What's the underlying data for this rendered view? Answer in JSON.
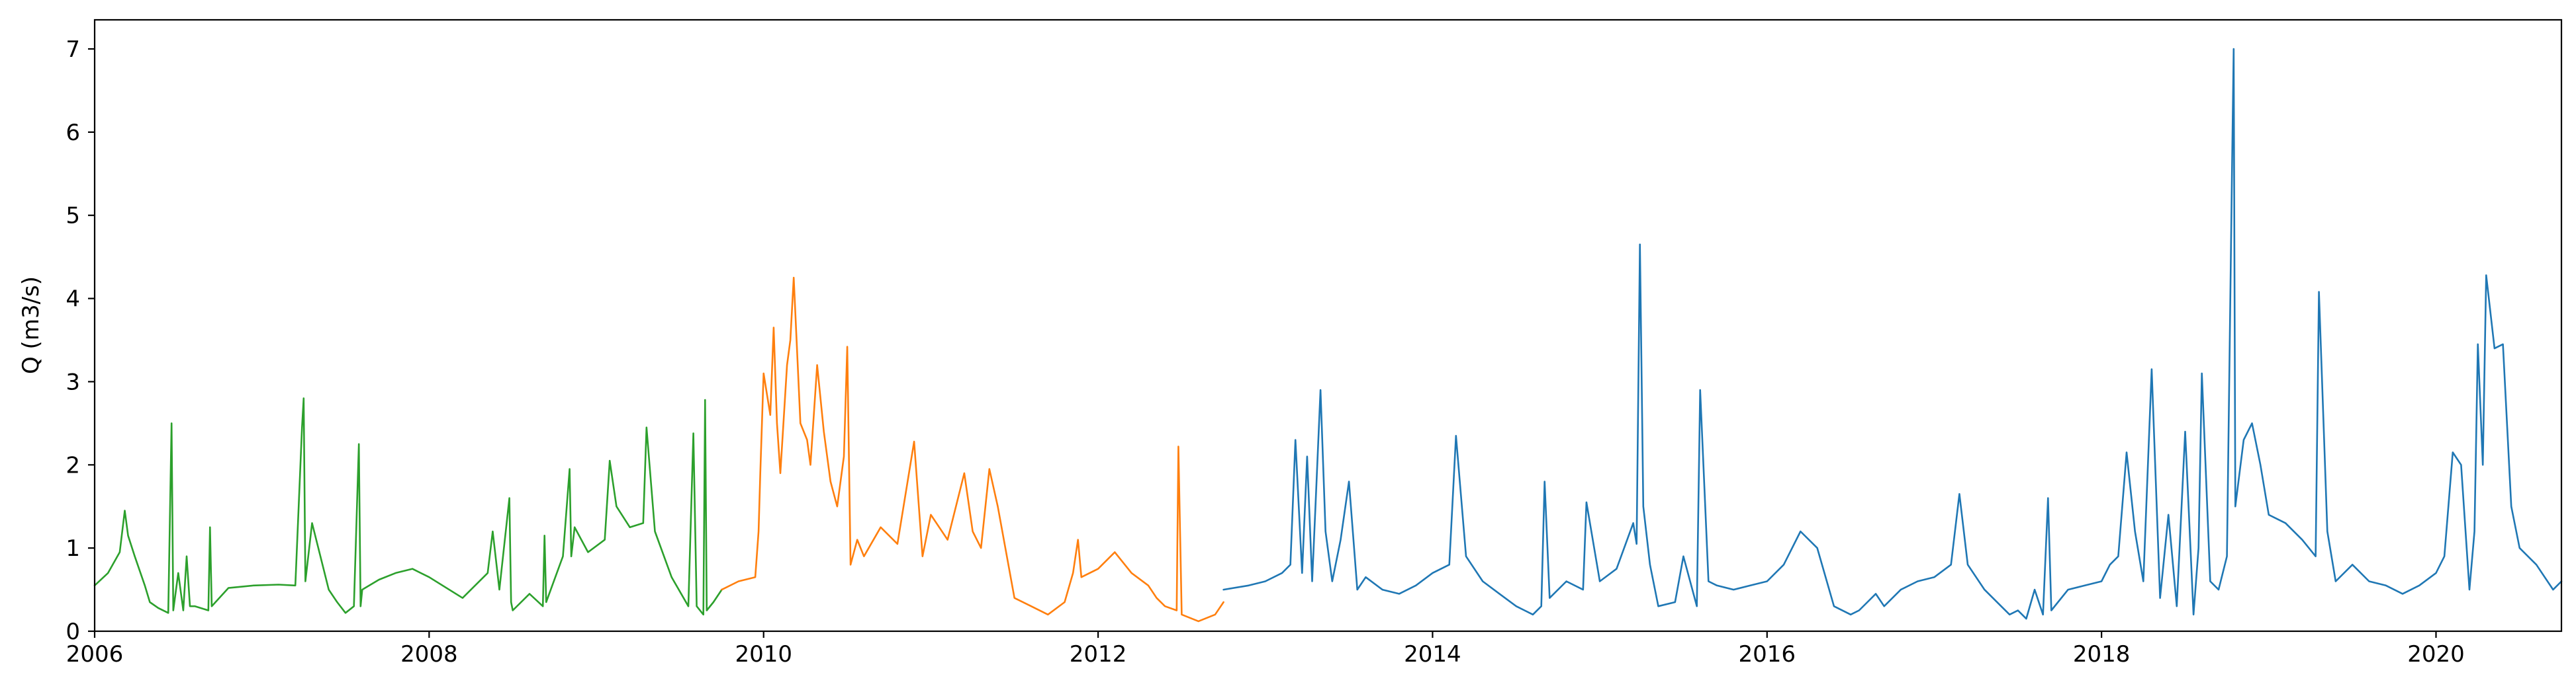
{
  "chart_data": {
    "type": "line",
    "title": "",
    "xlabel": "",
    "ylabel": "Q (m3/s)",
    "xlim": [
      2006.0,
      2020.75
    ],
    "ylim": [
      0,
      7.35
    ],
    "xticks": [
      2006,
      2008,
      2010,
      2012,
      2014,
      2016,
      2018,
      2020
    ],
    "xtick_labels": [
      "2006",
      "2008",
      "2010",
      "2012",
      "2014",
      "2016",
      "2018",
      "2020"
    ],
    "yticks": [
      0,
      1,
      2,
      3,
      4,
      5,
      6,
      7
    ],
    "ytick_labels": [
      "0",
      "1",
      "2",
      "3",
      "4",
      "5",
      "6",
      "7"
    ],
    "grid": false,
    "legend": "none",
    "series": [
      {
        "color": "#2ca02c",
        "x": [
          2006.0,
          2006.08,
          2006.15,
          2006.18,
          2006.2,
          2006.24,
          2006.3,
          2006.33,
          2006.38,
          2006.44,
          2006.46,
          2006.47,
          2006.5,
          2006.53,
          2006.55,
          2006.57,
          2006.6,
          2006.68,
          2006.69,
          2006.7,
          2006.8,
          2006.95,
          2007.1,
          2007.2,
          2007.24,
          2007.25,
          2007.26,
          2007.3,
          2007.35,
          2007.4,
          2007.45,
          2007.5,
          2007.55,
          2007.58,
          2007.59,
          2007.6,
          2007.7,
          2007.8,
          2007.9,
          2008.0,
          2008.2,
          2008.35,
          2008.38,
          2008.42,
          2008.48,
          2008.49,
          2008.5,
          2008.6,
          2008.68,
          2008.69,
          2008.7,
          2008.8,
          2008.84,
          2008.85,
          2008.87,
          2008.95,
          2009.05,
          2009.08,
          2009.12,
          2009.2,
          2009.28,
          2009.3,
          2009.35,
          2009.45,
          2009.55,
          2009.58,
          2009.6,
          2009.64,
          2009.65,
          2009.66,
          2009.7,
          2009.75
        ],
        "values": [
          0.55,
          0.7,
          0.95,
          1.45,
          1.15,
          0.9,
          0.55,
          0.35,
          0.28,
          0.22,
          2.5,
          0.25,
          0.7,
          0.25,
          0.9,
          0.3,
          0.3,
          0.25,
          1.25,
          0.3,
          0.52,
          0.55,
          0.56,
          0.55,
          2.45,
          2.8,
          0.6,
          1.3,
          0.9,
          0.5,
          0.35,
          0.22,
          0.3,
          2.25,
          0.3,
          0.5,
          0.62,
          0.7,
          0.75,
          0.65,
          0.4,
          0.7,
          1.2,
          0.5,
          1.6,
          0.35,
          0.25,
          0.45,
          0.3,
          1.15,
          0.35,
          0.9,
          1.95,
          0.9,
          1.25,
          0.95,
          1.1,
          2.05,
          1.5,
          1.25,
          1.3,
          2.45,
          1.2,
          0.65,
          0.3,
          2.38,
          0.3,
          0.2,
          2.78,
          0.25,
          0.35,
          0.5
        ]
      },
      {
        "color": "#ff7f0e",
        "x": [
          2009.75,
          2009.85,
          2009.95,
          2009.97,
          2009.98,
          2010.0,
          2010.04,
          2010.06,
          2010.08,
          2010.1,
          2010.14,
          2010.16,
          2010.18,
          2010.22,
          2010.26,
          2010.28,
          2010.32,
          2010.36,
          2010.4,
          2010.44,
          2010.48,
          2010.5,
          2010.52,
          2010.56,
          2010.6,
          2010.7,
          2010.8,
          2010.9,
          2010.95,
          2011.0,
          2011.1,
          2011.2,
          2011.25,
          2011.3,
          2011.35,
          2011.4,
          2011.45,
          2011.5,
          2011.6,
          2011.7,
          2011.8,
          2011.85,
          2011.88,
          2011.9,
          2012.0,
          2012.1,
          2012.2,
          2012.3,
          2012.35,
          2012.4,
          2012.47,
          2012.48,
          2012.5,
          2012.6,
          2012.7,
          2012.75
        ],
        "values": [
          0.5,
          0.6,
          0.65,
          1.2,
          1.9,
          3.1,
          2.6,
          3.65,
          2.5,
          1.9,
          3.2,
          3.5,
          4.25,
          2.5,
          2.3,
          2.0,
          3.2,
          2.4,
          1.8,
          1.5,
          2.1,
          3.42,
          0.8,
          1.1,
          0.9,
          1.25,
          1.05,
          2.28,
          0.9,
          1.4,
          1.1,
          1.9,
          1.2,
          1.0,
          1.95,
          1.5,
          0.95,
          0.4,
          0.3,
          0.2,
          0.35,
          0.7,
          1.1,
          0.65,
          0.75,
          0.95,
          0.7,
          0.55,
          0.4,
          0.3,
          0.25,
          2.22,
          0.2,
          0.12,
          0.2,
          0.35
        ]
      },
      {
        "color": "#1f77b4",
        "x": [
          2012.75,
          2012.9,
          2013.0,
          2013.1,
          2013.15,
          2013.18,
          2013.22,
          2013.25,
          2013.28,
          2013.3,
          2013.33,
          2013.36,
          2013.4,
          2013.45,
          2013.5,
          2013.55,
          2013.6,
          2013.7,
          2013.8,
          2013.9,
          2014.0,
          2014.1,
          2014.14,
          2014.2,
          2014.3,
          2014.4,
          2014.5,
          2014.55,
          2014.6,
          2014.65,
          2014.67,
          2014.7,
          2014.8,
          2014.9,
          2014.92,
          2015.0,
          2015.1,
          2015.2,
          2015.22,
          2015.24,
          2015.26,
          2015.3,
          2015.35,
          2015.45,
          2015.5,
          2015.58,
          2015.6,
          2015.65,
          2015.7,
          2015.8,
          2015.9,
          2016.0,
          2016.1,
          2016.2,
          2016.3,
          2016.4,
          2016.5,
          2016.55,
          2016.6,
          2016.65,
          2016.7,
          2016.8,
          2016.9,
          2017.0,
          2017.1,
          2017.15,
          2017.2,
          2017.3,
          2017.4,
          2017.45,
          2017.5,
          2017.55,
          2017.6,
          2017.65,
          2017.68,
          2017.7,
          2017.8,
          2017.9,
          2018.0,
          2018.05,
          2018.1,
          2018.15,
          2018.2,
          2018.25,
          2018.3,
          2018.35,
          2018.4,
          2018.45,
          2018.5,
          2018.55,
          2018.58,
          2018.6,
          2018.65,
          2018.7,
          2018.75,
          2018.78,
          2018.79,
          2018.8,
          2018.85,
          2018.9,
          2018.95,
          2019.0,
          2019.1,
          2019.2,
          2019.28,
          2019.3,
          2019.35,
          2019.4,
          2019.5,
          2019.6,
          2019.7,
          2019.8,
          2019.9,
          2020.0,
          2020.05,
          2020.1,
          2020.15,
          2020.2,
          2020.23,
          2020.25,
          2020.28,
          2020.3,
          2020.35,
          2020.4,
          2020.45,
          2020.5,
          2020.6,
          2020.7,
          2020.75
        ],
        "values": [
          0.5,
          0.55,
          0.6,
          0.7,
          0.8,
          2.3,
          0.7,
          2.1,
          0.6,
          1.5,
          2.9,
          1.2,
          0.6,
          1.1,
          1.8,
          0.5,
          0.65,
          0.5,
          0.45,
          0.55,
          0.7,
          0.8,
          2.35,
          0.9,
          0.6,
          0.45,
          0.3,
          0.25,
          0.2,
          0.3,
          1.8,
          0.4,
          0.6,
          0.5,
          1.55,
          0.6,
          0.75,
          1.3,
          1.05,
          4.65,
          1.5,
          0.8,
          0.3,
          0.35,
          0.9,
          0.3,
          2.9,
          0.6,
          0.55,
          0.5,
          0.55,
          0.6,
          0.8,
          1.2,
          1.0,
          0.3,
          0.2,
          0.25,
          0.35,
          0.45,
          0.3,
          0.5,
          0.6,
          0.65,
          0.8,
          1.65,
          0.8,
          0.5,
          0.3,
          0.2,
          0.25,
          0.15,
          0.5,
          0.2,
          1.6,
          0.25,
          0.5,
          0.55,
          0.6,
          0.8,
          0.9,
          2.15,
          1.2,
          0.6,
          3.15,
          0.4,
          1.4,
          0.3,
          2.4,
          0.2,
          1.0,
          3.1,
          0.6,
          0.5,
          0.9,
          5.5,
          7.0,
          1.5,
          2.3,
          2.5,
          2.0,
          1.4,
          1.3,
          1.1,
          0.9,
          4.08,
          1.2,
          0.6,
          0.8,
          0.6,
          0.55,
          0.45,
          0.55,
          0.7,
          0.9,
          2.15,
          2.0,
          0.5,
          1.2,
          3.45,
          2.0,
          4.28,
          3.4,
          3.45,
          1.5,
          1.0,
          0.8,
          0.5,
          0.6
        ]
      }
    ]
  }
}
